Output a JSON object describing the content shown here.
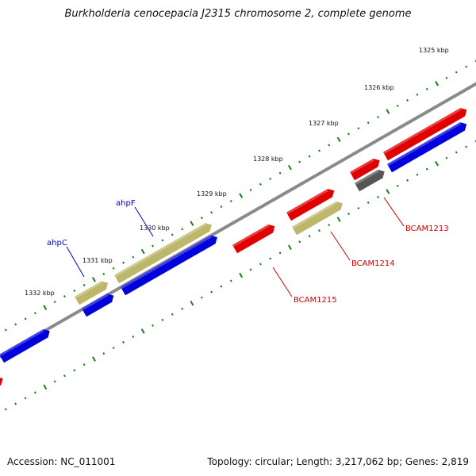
{
  "title": "Burkholderia cenocepacia J2315 chromosome 2, complete genome",
  "footer": {
    "accession": "Accession: NC_011001",
    "topology": "Topology: circular; Length: 3,217,062 bp; Genes: 2,819"
  },
  "colors": {
    "red": "#e00000",
    "blue": "#0000dd",
    "khaki": "#bdb76b",
    "grey": "#555555",
    "backbone": "#888888",
    "tick": "#1a7f1a",
    "label_blue": "#0000cc",
    "label_red": "#cc0000"
  },
  "ticks": [
    {
      "label": "1325 kbp"
    },
    {
      "label": "1326 kbp"
    },
    {
      "label": "1327 kbp"
    },
    {
      "label": "1328 kbp"
    },
    {
      "label": "1329 kbp"
    },
    {
      "label": "1330 kbp"
    },
    {
      "label": "1331 kbp"
    },
    {
      "label": "1332 kbp"
    }
  ],
  "gene_labels": [
    {
      "name": "ahpF",
      "color": "blue"
    },
    {
      "name": "ahpC",
      "color": "blue"
    },
    {
      "name": "BCAM1213",
      "color": "red"
    },
    {
      "name": "BCAM1214",
      "color": "red"
    },
    {
      "name": "BCAM1215",
      "color": "red"
    }
  ]
}
